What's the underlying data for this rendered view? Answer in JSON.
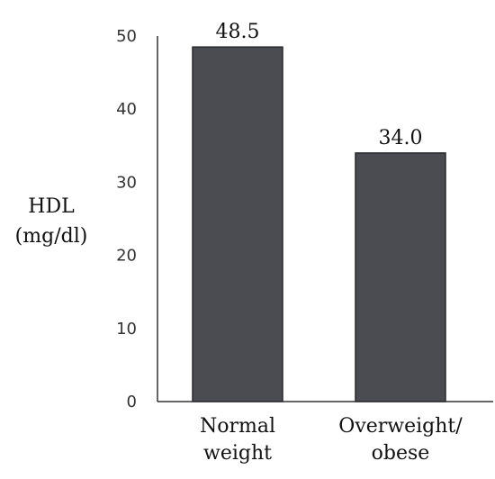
{
  "chart_data": {
    "type": "bar",
    "categories": [
      [
        "Normal",
        "weight"
      ],
      [
        "Overweight/",
        "obese"
      ]
    ],
    "values": [
      48.5,
      34.0
    ],
    "data_labels": [
      "48.5",
      "34.0"
    ],
    "ylabel_lines": [
      "HDL",
      "(mg/dl)"
    ],
    "yticks": [
      0,
      10,
      20,
      30,
      40,
      50
    ],
    "ylim": [
      0,
      50
    ],
    "grid": false,
    "legend": "none",
    "colors": {
      "bar": "#4b4c51",
      "bar_edge": "#2a2a2d",
      "axis": "#333333"
    }
  }
}
